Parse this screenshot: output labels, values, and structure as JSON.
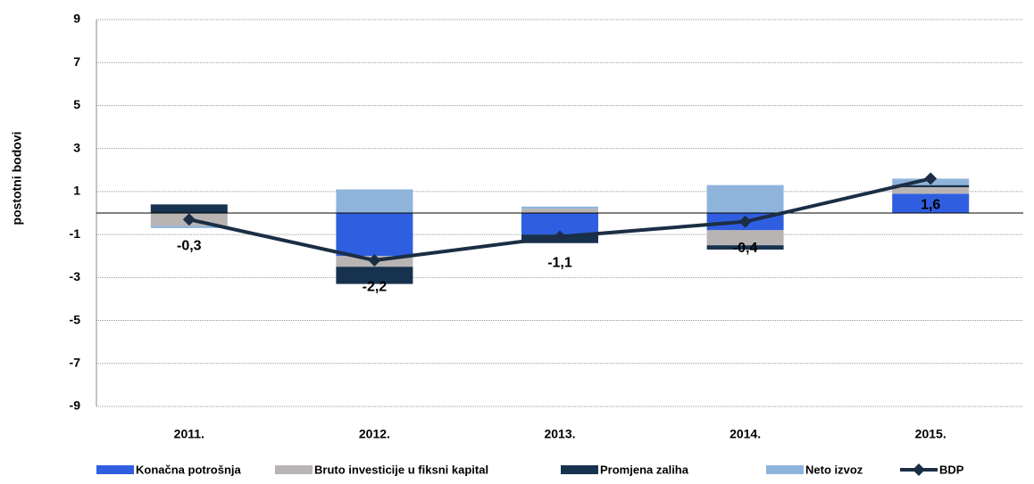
{
  "chart_data": {
    "type": "stacked_bar_line",
    "y_label": "postotni bodovi",
    "categories": [
      "2011.",
      "2012.",
      "2013.",
      "2014.",
      "2015."
    ],
    "series": [
      {
        "name": "Konačna potrošnja",
        "color": "#2f5fe0",
        "values": [
          0.0,
          -2.0,
          -1.0,
          -0.8,
          0.9
        ]
      },
      {
        "name": "Bruto investicije u fiksni kapital",
        "color": "#b9b4b4",
        "values": [
          -0.6,
          -0.5,
          0.2,
          -0.7,
          0.3
        ]
      },
      {
        "name": "Promjena zaliha",
        "color": "#17324f",
        "values": [
          0.4,
          -0.8,
          -0.4,
          -0.2,
          0.1
        ]
      },
      {
        "name": "Neto izvoz",
        "color": "#8fb4dc",
        "values": [
          -0.1,
          1.1,
          0.1,
          1.3,
          0.3
        ]
      },
      {
        "name": "BDP",
        "color": "#1b2e45",
        "type": "line",
        "values": [
          -0.3,
          -2.2,
          -1.1,
          -0.4,
          1.6
        ],
        "value_labels": [
          "-0,3",
          "-2,2",
          "-1,1",
          "-0,4",
          "1,6"
        ]
      }
    ],
    "ylim": [
      -9,
      9
    ],
    "yticks": [
      -9,
      -7,
      -5,
      -3,
      -1,
      1,
      3,
      5,
      7,
      9
    ],
    "grid": true
  }
}
